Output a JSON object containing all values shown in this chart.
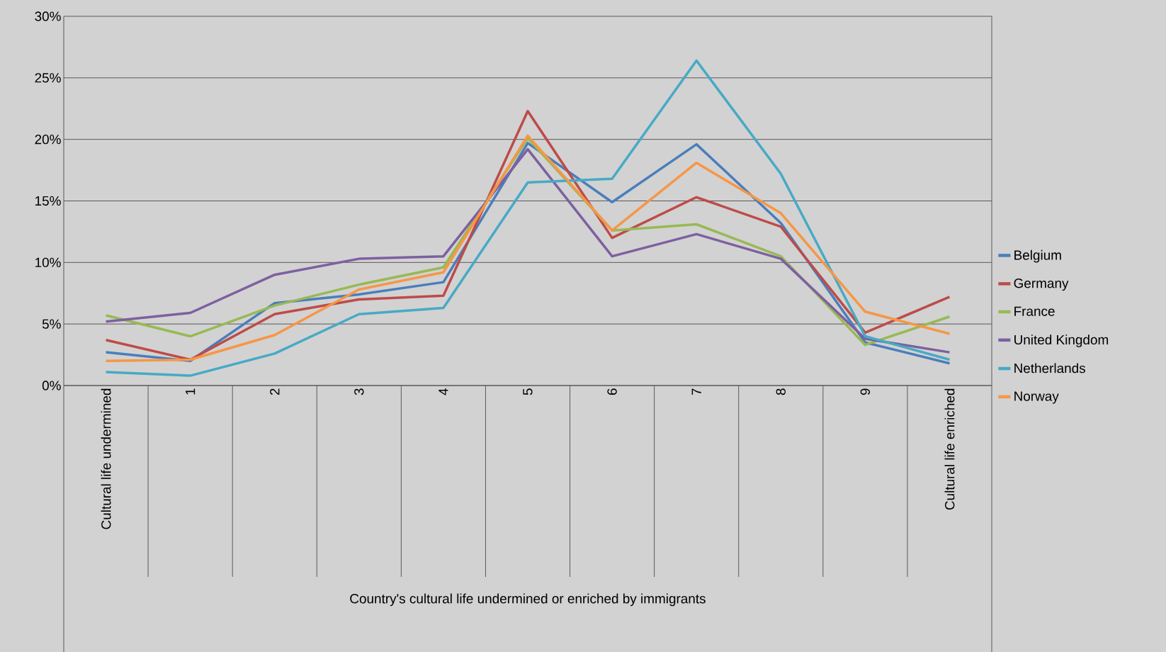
{
  "chart_data": {
    "type": "line",
    "xlabel": "Country's cultural life undermined or enriched by immigrants",
    "categories": [
      "Cultural life undermined",
      "1",
      "2",
      "3",
      "4",
      "5",
      "6",
      "7",
      "8",
      "9",
      "Cultural life enriched"
    ],
    "series": [
      {
        "name": "Belgium",
        "color": "#4a7ebb",
        "values": [
          2.7,
          2.0,
          6.7,
          7.4,
          8.4,
          19.7,
          14.9,
          19.6,
          13.2,
          3.5,
          1.8
        ]
      },
      {
        "name": "Germany",
        "color": "#be4b48",
        "values": [
          3.7,
          2.1,
          5.8,
          7.0,
          7.3,
          22.3,
          12.0,
          15.3,
          12.9,
          4.3,
          7.2
        ]
      },
      {
        "name": "France",
        "color": "#98b954",
        "values": [
          5.7,
          4.0,
          6.5,
          8.2,
          9.6,
          20.1,
          12.6,
          13.1,
          10.5,
          3.3,
          5.6
        ]
      },
      {
        "name": "United Kingdom",
        "color": "#7d60a0",
        "values": [
          5.2,
          5.9,
          9.0,
          10.3,
          10.5,
          19.2,
          10.5,
          12.3,
          10.3,
          3.8,
          2.7
        ]
      },
      {
        "name": "Netherlands",
        "color": "#46aac5",
        "values": [
          1.1,
          0.8,
          2.6,
          5.8,
          6.3,
          16.5,
          16.8,
          26.4,
          17.2,
          4.0,
          2.1
        ]
      },
      {
        "name": "Norway",
        "color": "#f79646",
        "values": [
          2.0,
          2.1,
          4.1,
          7.8,
          9.2,
          20.3,
          12.6,
          18.1,
          14.0,
          6.0,
          4.2
        ]
      }
    ],
    "ylim": [
      0,
      30
    ],
    "yticks": [
      {
        "value": 0,
        "label": "0%"
      },
      {
        "value": 5,
        "label": "5%"
      },
      {
        "value": 10,
        "label": "10%"
      },
      {
        "value": 15,
        "label": "15%"
      },
      {
        "value": 20,
        "label": "20%"
      },
      {
        "value": 25,
        "label": "25%"
      },
      {
        "value": 30,
        "label": "30%"
      }
    ],
    "grid": "y",
    "legend": "right",
    "marker": "none",
    "line_style": "solid"
  }
}
